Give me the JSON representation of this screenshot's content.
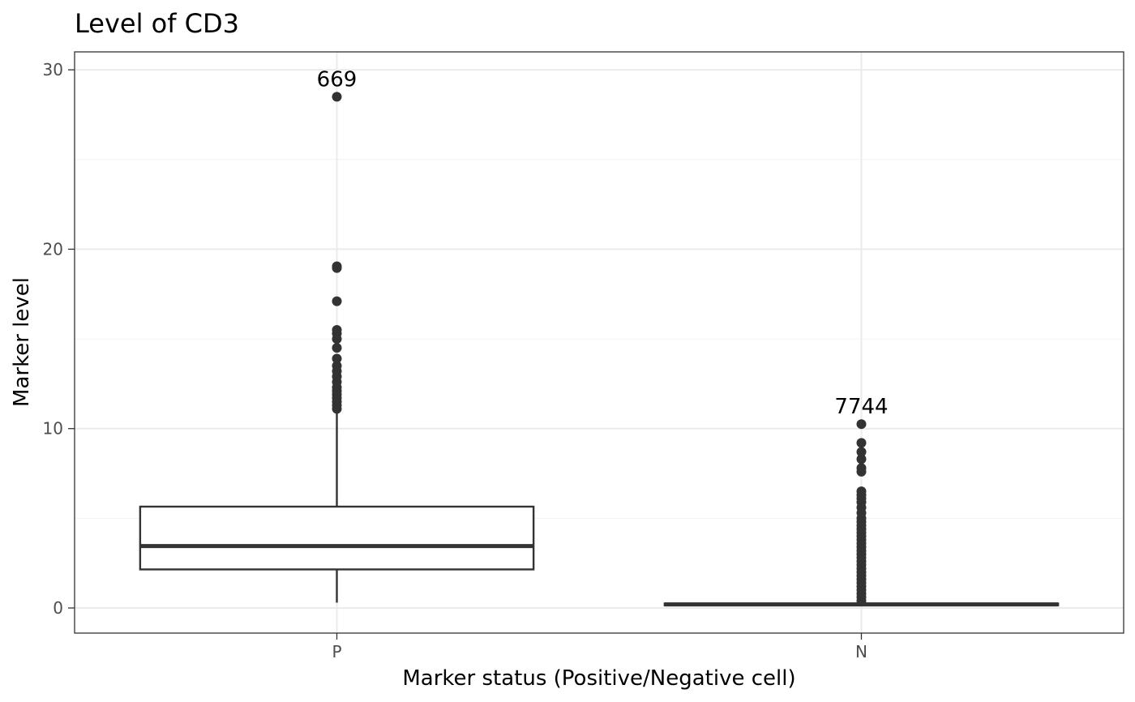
{
  "chart_data": {
    "type": "boxplot",
    "title": "Level of CD3",
    "xlabel": "Marker status (Positive/Negative cell)",
    "ylabel": "Marker level",
    "categories": [
      "P",
      "N"
    ],
    "ylim": [
      -1.4,
      31
    ],
    "yticks": [
      0,
      10,
      20,
      30
    ],
    "grid": true,
    "boxes": [
      {
        "category": "P",
        "whisker_low": 0.3,
        "q1": 2.15,
        "median": 3.45,
        "q3": 5.65,
        "whisker_high": 11.0,
        "outliers": [
          11.1,
          11.3,
          11.5,
          11.7,
          11.9,
          12.1,
          12.3,
          12.6,
          12.9,
          13.2,
          13.5,
          13.9,
          14.5,
          15.0,
          15.3,
          15.5,
          17.1,
          18.95,
          19.05,
          28.5
        ],
        "max_label": "669"
      },
      {
        "category": "N",
        "whisker_low": 0.15,
        "q1": 0.15,
        "median": 0.2,
        "q3": 0.25,
        "whisker_high": 0.3,
        "outliers": [
          0.4,
          0.6,
          0.8,
          1.0,
          1.2,
          1.4,
          1.6,
          1.8,
          2.0,
          2.2,
          2.4,
          2.6,
          2.8,
          3.0,
          3.2,
          3.4,
          3.6,
          3.8,
          4.0,
          4.2,
          4.4,
          4.6,
          4.8,
          5.0,
          5.3,
          5.6,
          5.9,
          6.1,
          6.3,
          6.5,
          7.6,
          7.8,
          8.3,
          8.7,
          9.2,
          10.25
        ],
        "max_label": "7744"
      }
    ]
  },
  "colors": {
    "box_stroke": "#333333",
    "point_fill": "#333333",
    "grid_major": "#ebebeb",
    "grid_minor": "#f3f3f3",
    "panel_border": "#333333",
    "background": "#ffffff"
  }
}
